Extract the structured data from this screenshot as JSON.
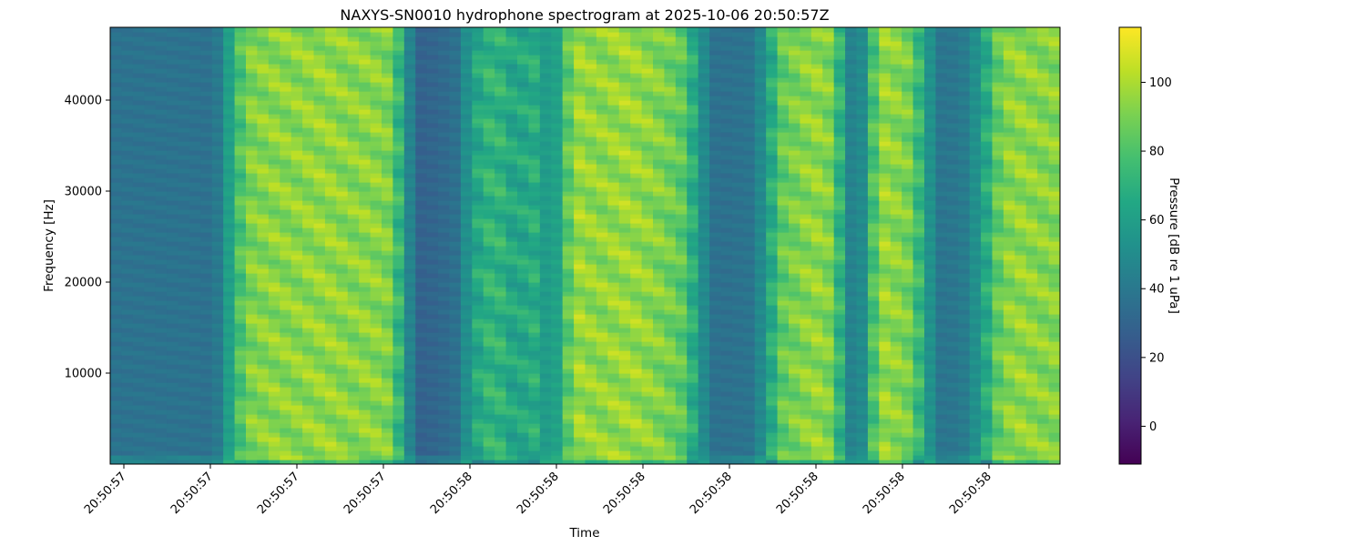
{
  "chart_data": {
    "type": "heatmap",
    "title": "NAXYS-SN0010 hydrophone spectrogram at 2025-10-06 20:50:57Z",
    "xlabel": "Time",
    "ylabel": "Frequency [Hz]",
    "colorbar_label": "Pressure [dB re 1 uPa]",
    "colormap": "viridis",
    "grid": false,
    "ylim": [
      0,
      48000
    ],
    "x_tick_labels": [
      "20:50:57",
      "20:50:57",
      "20:50:57",
      "20:50:57",
      "20:50:58",
      "20:50:58",
      "20:50:58",
      "20:50:58",
      "20:50:58",
      "20:50:58",
      "20:50:58"
    ],
    "y_ticks": [
      10000,
      20000,
      30000,
      40000
    ],
    "y_tick_labels": [
      "10000",
      "20000",
      "30000",
      "40000"
    ],
    "colorbar_range": [
      -11,
      116
    ],
    "colorbar_ticks": [
      0,
      20,
      40,
      60,
      80,
      100
    ],
    "colorbar_tick_labels": [
      "0",
      "20",
      "40",
      "60",
      "80",
      "100"
    ],
    "time_bin_levels_db": [
      37,
      37,
      37,
      37,
      37,
      37,
      37,
      37,
      36,
      36,
      55,
      96,
      97,
      99,
      101,
      99,
      100,
      101,
      101,
      102,
      100,
      98,
      101,
      100,
      97,
      95,
      30,
      28,
      30,
      34,
      33,
      44,
      85,
      70,
      85,
      68,
      60,
      95,
      45,
      48,
      105,
      103,
      101,
      100,
      102,
      103,
      103,
      100,
      98,
      95,
      90,
      84,
      38,
      36,
      36,
      37,
      38,
      38,
      80,
      95,
      94,
      100,
      103,
      98,
      92,
      28,
      34,
      102,
      103,
      100,
      95,
      93,
      40,
      38,
      38,
      42,
      45,
      75,
      95,
      100,
      102,
      100,
      98,
      99
    ]
  }
}
